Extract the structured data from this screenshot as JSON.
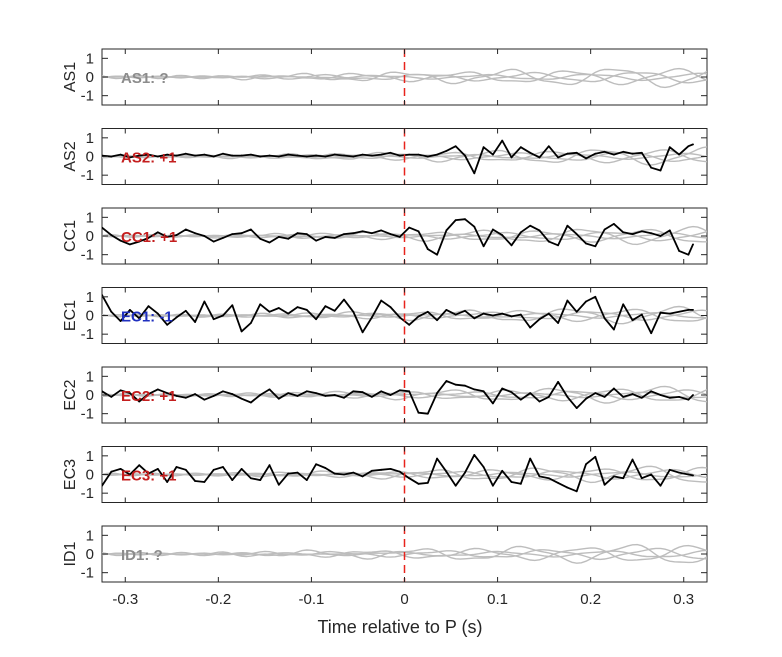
{
  "chart_data": {
    "type": "line",
    "xlabel": "Time relative to P (s)",
    "xlim": [
      -0.325,
      0.325
    ],
    "xticks": [
      -0.3,
      -0.2,
      -0.1,
      0,
      0.1,
      0.2,
      0.3
    ],
    "xtick_labels": [
      "-0.3",
      "-0.2",
      "-0.1",
      "0",
      "0.1",
      "0.2",
      "0.3"
    ],
    "ylim": [
      -1.5,
      1.5
    ],
    "yticks": [
      1,
      0,
      -1
    ],
    "ytick_labels": [
      "1",
      "0",
      "-1"
    ],
    "vline_x": 0,
    "vline_color": "#e8231c",
    "trace_color": "#000000",
    "background_color": "#bdbdbd",
    "panels": [
      {
        "ylabel": "AS1",
        "label": "AS1: ?",
        "label_color": "#8c8c8c",
        "trace": null
      },
      {
        "ylabel": "AS2",
        "label": "AS2: +1",
        "label_color": "#c41e1e",
        "trace": {
          "x": [
            -0.325,
            -0.315,
            -0.305,
            -0.295,
            -0.285,
            -0.275,
            -0.265,
            -0.255,
            -0.245,
            -0.235,
            -0.225,
            -0.215,
            -0.205,
            -0.195,
            -0.185,
            -0.175,
            -0.165,
            -0.155,
            -0.145,
            -0.135,
            -0.125,
            -0.115,
            -0.105,
            -0.095,
            -0.085,
            -0.075,
            -0.065,
            -0.055,
            -0.045,
            -0.035,
            -0.025,
            -0.015,
            -0.005,
            0.005,
            0.015,
            0.025,
            0.035,
            0.045,
            0.055,
            0.065,
            0.075,
            0.085,
            0.095,
            0.105,
            0.115,
            0.125,
            0.135,
            0.145,
            0.155,
            0.165,
            0.175,
            0.185,
            0.195,
            0.205,
            0.215,
            0.225,
            0.235,
            0.245,
            0.255,
            0.265,
            0.275,
            0.285,
            0.295,
            0.305,
            0.31
          ],
          "y": [
            0.05,
            0.0,
            0.1,
            -0.05,
            0.05,
            0.1,
            0.0,
            0.1,
            0.05,
            0.15,
            0.05,
            0.1,
            0.0,
            0.15,
            0.05,
            0.05,
            0.1,
            0.0,
            0.05,
            0.0,
            0.1,
            0.05,
            0.0,
            0.05,
            0.0,
            0.1,
            0.05,
            0.0,
            0.1,
            0.05,
            0.1,
            0.2,
            0.05,
            0.1,
            0.1,
            0.0,
            0.1,
            0.3,
            0.55,
            0.05,
            -0.9,
            0.5,
            0.1,
            0.85,
            -0.05,
            0.5,
            0.2,
            -0.05,
            0.55,
            -0.05,
            0.15,
            0.2,
            -0.1,
            0.15,
            0.25,
            0.1,
            0.25,
            0.15,
            0.2,
            -0.6,
            -0.75,
            0.5,
            0.1,
            0.55,
            0.65
          ]
        }
      },
      {
        "ylabel": "CC1",
        "label": "CC1: +1",
        "label_color": "#c41e1e",
        "trace": {
          "x": [
            -0.325,
            -0.315,
            -0.305,
            -0.295,
            -0.285,
            -0.275,
            -0.265,
            -0.255,
            -0.245,
            -0.235,
            -0.225,
            -0.215,
            -0.205,
            -0.195,
            -0.185,
            -0.175,
            -0.165,
            -0.155,
            -0.145,
            -0.135,
            -0.125,
            -0.115,
            -0.105,
            -0.095,
            -0.085,
            -0.075,
            -0.065,
            -0.055,
            -0.045,
            -0.035,
            -0.025,
            -0.015,
            -0.005,
            0.005,
            0.015,
            0.025,
            0.035,
            0.045,
            0.055,
            0.065,
            0.075,
            0.085,
            0.095,
            0.105,
            0.115,
            0.125,
            0.135,
            0.145,
            0.155,
            0.165,
            0.175,
            0.185,
            0.195,
            0.205,
            0.215,
            0.225,
            0.235,
            0.245,
            0.255,
            0.265,
            0.275,
            0.285,
            0.295,
            0.305,
            0.31
          ],
          "y": [
            0.45,
            0.05,
            -0.25,
            -0.45,
            -0.3,
            -0.1,
            0.2,
            -0.05,
            0.05,
            0.35,
            0.15,
            0.0,
            -0.3,
            -0.1,
            0.1,
            0.15,
            0.35,
            -0.15,
            -0.35,
            -0.05,
            -0.15,
            0.15,
            0.1,
            -0.25,
            -0.05,
            -0.1,
            0.1,
            0.15,
            0.25,
            0.15,
            0.3,
            0.1,
            -0.05,
            0.45,
            0.25,
            -0.7,
            -1.0,
            0.3,
            0.85,
            0.9,
            0.5,
            -0.55,
            0.35,
            0.05,
            -0.5,
            0.2,
            0.55,
            0.3,
            -0.3,
            -0.5,
            0.55,
            0.1,
            -0.4,
            -0.55,
            0.35,
            0.65,
            0.2,
            0.1,
            0.25,
            0.15,
            0.0,
            0.3,
            -0.8,
            -1.0,
            -0.45
          ]
        }
      },
      {
        "ylabel": "EC1",
        "label": "EC1: -1",
        "label_color": "#1f2fbf",
        "trace": {
          "x": [
            -0.325,
            -0.315,
            -0.305,
            -0.295,
            -0.285,
            -0.275,
            -0.265,
            -0.255,
            -0.245,
            -0.235,
            -0.225,
            -0.215,
            -0.205,
            -0.195,
            -0.185,
            -0.175,
            -0.165,
            -0.155,
            -0.145,
            -0.135,
            -0.125,
            -0.115,
            -0.105,
            -0.095,
            -0.085,
            -0.075,
            -0.065,
            -0.055,
            -0.045,
            -0.035,
            -0.025,
            -0.015,
            -0.005,
            0.005,
            0.015,
            0.025,
            0.035,
            0.045,
            0.055,
            0.065,
            0.075,
            0.085,
            0.095,
            0.105,
            0.115,
            0.125,
            0.135,
            0.145,
            0.155,
            0.165,
            0.175,
            0.185,
            0.195,
            0.205,
            0.215,
            0.225,
            0.235,
            0.245,
            0.255,
            0.265,
            0.275,
            0.285,
            0.295,
            0.305,
            0.31
          ],
          "y": [
            1.1,
            0.2,
            -0.3,
            0.3,
            -0.15,
            0.5,
            0.1,
            -0.5,
            -0.1,
            0.25,
            -0.35,
            0.75,
            -0.2,
            0.0,
            0.55,
            -0.85,
            -0.4,
            0.6,
            0.2,
            0.4,
            0.1,
            0.45,
            0.3,
            -0.2,
            0.5,
            0.25,
            0.85,
            0.2,
            -0.9,
            -0.1,
            0.8,
            0.45,
            -0.1,
            -0.5,
            -0.05,
            0.2,
            -0.25,
            0.3,
            0.05,
            0.25,
            -0.15,
            0.1,
            0.0,
            0.1,
            -0.05,
            0.05,
            -0.65,
            -0.2,
            0.1,
            -0.4,
            0.8,
            0.2,
            0.75,
            1.0,
            -0.15,
            -0.75,
            0.6,
            -0.25,
            0.05,
            -0.95,
            0.15,
            0.1,
            0.2,
            0.3,
            0.3
          ]
        }
      },
      {
        "ylabel": "EC2",
        "label": "EC2: +1",
        "label_color": "#c41e1e",
        "trace": {
          "x": [
            -0.325,
            -0.315,
            -0.305,
            -0.295,
            -0.285,
            -0.275,
            -0.265,
            -0.255,
            -0.245,
            -0.235,
            -0.225,
            -0.215,
            -0.205,
            -0.195,
            -0.185,
            -0.175,
            -0.165,
            -0.155,
            -0.145,
            -0.135,
            -0.125,
            -0.115,
            -0.105,
            -0.095,
            -0.085,
            -0.075,
            -0.065,
            -0.055,
            -0.045,
            -0.035,
            -0.025,
            -0.015,
            -0.005,
            0.005,
            0.015,
            0.025,
            0.035,
            0.045,
            0.055,
            0.065,
            0.075,
            0.085,
            0.095,
            0.105,
            0.115,
            0.125,
            0.135,
            0.145,
            0.155,
            0.165,
            0.175,
            0.185,
            0.195,
            0.205,
            0.215,
            0.225,
            0.235,
            0.245,
            0.255,
            0.265,
            0.275,
            0.285,
            0.295,
            0.305,
            0.31
          ],
          "y": [
            0.2,
            -0.1,
            0.25,
            0.1,
            -0.35,
            0.05,
            0.3,
            0.1,
            -0.05,
            -0.15,
            0.05,
            -0.25,
            -0.05,
            0.2,
            0.05,
            -0.2,
            -0.4,
            0.0,
            0.3,
            -0.2,
            0.1,
            -0.05,
            0.2,
            0.1,
            -0.05,
            0.0,
            -0.15,
            0.2,
            0.15,
            -0.1,
            0.2,
            0.0,
            0.25,
            0.2,
            -0.95,
            -1.0,
            0.1,
            0.75,
            0.55,
            0.5,
            0.3,
            0.2,
            -0.45,
            0.35,
            0.15,
            -0.25,
            0.1,
            -0.35,
            -0.1,
            0.7,
            -0.1,
            -0.7,
            -0.2,
            0.1,
            -0.1,
            0.35,
            -0.1,
            0.05,
            -0.15,
            0.2,
            0.0,
            -0.15,
            -0.1,
            -0.25,
            0.0
          ]
        }
      },
      {
        "ylabel": "EC3",
        "label": "EC3: +1",
        "label_color": "#c41e1e",
        "trace": {
          "x": [
            -0.325,
            -0.315,
            -0.305,
            -0.295,
            -0.285,
            -0.275,
            -0.265,
            -0.255,
            -0.245,
            -0.235,
            -0.225,
            -0.215,
            -0.205,
            -0.195,
            -0.185,
            -0.175,
            -0.165,
            -0.155,
            -0.145,
            -0.135,
            -0.125,
            -0.115,
            -0.105,
            -0.095,
            -0.085,
            -0.075,
            -0.065,
            -0.055,
            -0.045,
            -0.035,
            -0.025,
            -0.015,
            -0.005,
            0.005,
            0.015,
            0.025,
            0.035,
            0.045,
            0.055,
            0.065,
            0.075,
            0.085,
            0.095,
            0.105,
            0.115,
            0.125,
            0.135,
            0.145,
            0.155,
            0.165,
            0.175,
            0.185,
            0.195,
            0.205,
            0.215,
            0.225,
            0.235,
            0.245,
            0.255,
            0.265,
            0.275,
            0.285,
            0.295,
            0.305,
            0.31
          ],
          "y": [
            -0.6,
            0.15,
            0.3,
            0.0,
            0.5,
            0.05,
            0.3,
            -0.4,
            0.4,
            0.25,
            -0.35,
            -0.4,
            0.25,
            0.4,
            -0.3,
            0.3,
            -0.2,
            -0.3,
            0.5,
            -0.55,
            0.05,
            0.1,
            -0.3,
            0.55,
            0.35,
            0.05,
            0.0,
            0.1,
            -0.1,
            0.2,
            0.25,
            0.3,
            0.15,
            -0.2,
            -0.5,
            -0.45,
            0.85,
            0.15,
            -0.6,
            0.1,
            1.05,
            0.4,
            -0.6,
            0.2,
            -0.4,
            -0.5,
            0.85,
            -0.1,
            -0.2,
            -0.45,
            -0.7,
            -0.9,
            0.55,
            0.95,
            -0.55,
            -0.1,
            -0.2,
            0.8,
            -0.2,
            0.0,
            -0.6,
            0.25,
            0.1,
            0.0,
            -0.05
          ]
        }
      },
      {
        "ylabel": "ID1",
        "label": "ID1: ?",
        "label_color": "#8c8c8c",
        "trace": null
      }
    ]
  }
}
